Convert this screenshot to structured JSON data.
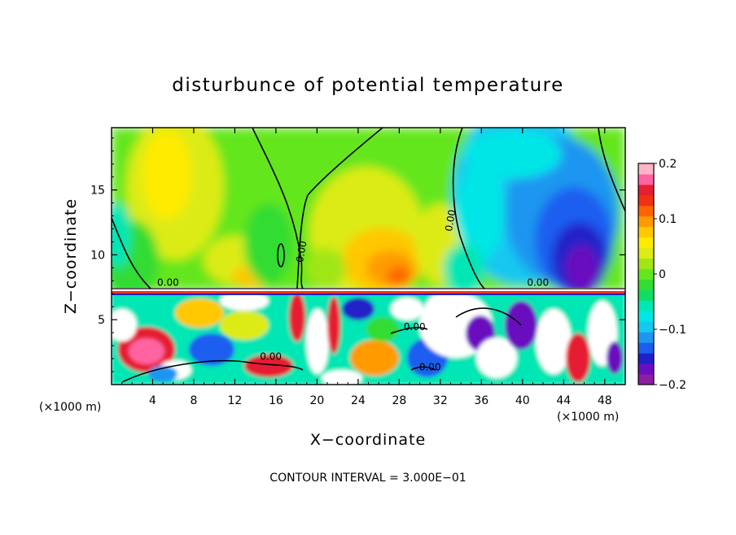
{
  "chart_data": {
    "type": "heatmap",
    "title": "disturbunce of potential temperature",
    "xlabel": "X−coordinate",
    "ylabel": "Z−coordinate",
    "x_unit_label": "(×1000 m)",
    "y_unit_label": "(×1000 m)",
    "footer": "CONTOUR INTERVAL = 3.000E−01",
    "xlim": [
      0,
      50
    ],
    "ylim": [
      0,
      19.8
    ],
    "x_ticks": [
      4,
      8,
      12,
      16,
      20,
      24,
      28,
      32,
      36,
      40,
      44,
      48
    ],
    "y_ticks": [
      5,
      10,
      15
    ],
    "grid": false,
    "colorbar": {
      "placement": "right",
      "min": -0.2,
      "max": 0.2,
      "tick_values": [
        0.2,
        0.1,
        0,
        -0.1,
        -0.2
      ],
      "tick_labels": [
        "0.2",
        "0.1",
        "0",
        "−0.1",
        "−0.2"
      ],
      "colors": [
        "#8c1fa3",
        "#6a0fbf",
        "#2020c8",
        "#1a5ef0",
        "#1e96f0",
        "#14c8f0",
        "#00e6e6",
        "#00e6b4",
        "#12dc64",
        "#32dc32",
        "#64e61e",
        "#a0e614",
        "#dceb14",
        "#ffeb00",
        "#ffc800",
        "#ff9b00",
        "#ff6400",
        "#f03214",
        "#e61e32",
        "#ff64a0",
        "#ffb4c8"
      ]
    },
    "contour_labels": [
      {
        "text": "0.00",
        "x": 5.5,
        "z": 7.6
      },
      {
        "text": "0.00",
        "x": 18.8,
        "z": 10.2
      },
      {
        "text": "0.00",
        "x": 33.3,
        "z": 12.6
      },
      {
        "text": "0.00",
        "x": 41.5,
        "z": 7.6
      },
      {
        "text": "0.00",
        "x": 15.5,
        "z": 1.9
      },
      {
        "text": "0.00",
        "x": 29.5,
        "z": 4.2
      },
      {
        "text": "0.00",
        "x": 31.0,
        "z": 1.1
      }
    ]
  }
}
